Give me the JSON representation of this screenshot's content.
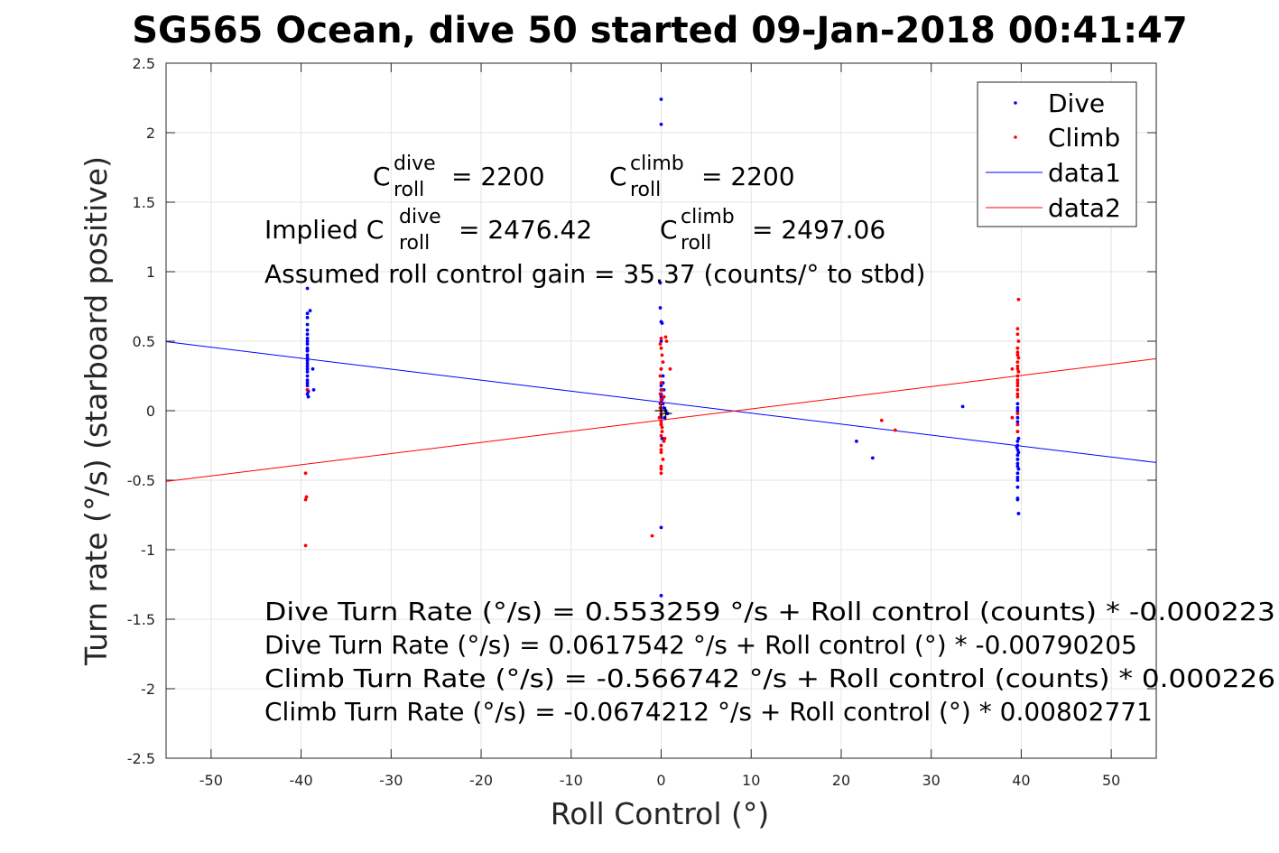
{
  "chart_data": {
    "type": "scatter",
    "title": "SG565 Ocean, dive 50 started 09-Jan-2018 00:41:47",
    "xlabel": "Roll Control (°)",
    "ylabel": "Turn rate (°/s) (starboard positive)",
    "xlim": [
      -55,
      55
    ],
    "ylim": [
      -2.5,
      2.5
    ],
    "xticks": [
      -50,
      -40,
      -30,
      -20,
      -10,
      0,
      10,
      20,
      30,
      40,
      50
    ],
    "yticks": [
      -2.5,
      -2,
      -1.5,
      -1,
      -0.5,
      0,
      0.5,
      1,
      1.5,
      2,
      2.5
    ],
    "grid": true,
    "legend_position": "top-right",
    "legend": [
      "Dive",
      "Climb",
      "data1",
      "data2"
    ],
    "colors": {
      "dive": "#0000ff",
      "climb": "#ff0000",
      "marker": "#000000"
    },
    "series": [
      {
        "name": "Dive",
        "kind": "points",
        "x": [
          -39.3,
          -39.3,
          -39.3,
          -39.3,
          -39.3,
          -39.3,
          -39.3,
          -39.3,
          -39.3,
          -39.3,
          -39.3,
          -39.3,
          -39.3,
          -39.3,
          -39.3,
          -39.3,
          -39.3,
          -39.3,
          -39.3,
          -39.3,
          -39.3,
          -39.3,
          -39.3,
          -39.3,
          -39.2,
          -39.2,
          -39.0,
          -38.7,
          -38.6,
          -39.3,
          0.0,
          0.0,
          -0.1,
          -0.1,
          0.0,
          0.1,
          0.0,
          0.0,
          0.2,
          0.3,
          0.0,
          -0.1,
          0.1,
          0.0,
          0.2,
          0.0,
          0.0,
          0.1,
          0.3,
          0.5,
          0.7,
          0.0,
          0.0,
          0.2,
          0.4,
          0.0,
          0.1,
          0.0,
          0.3,
          0.0,
          21.7,
          23.5,
          33.5,
          39.6,
          39.6,
          39.6,
          39.6,
          39.7,
          39.6,
          39.6,
          39.6,
          39.7,
          39.6,
          39.6,
          39.6,
          39.6,
          39.7,
          39.6,
          39.6,
          39.6,
          39.6,
          39.6,
          39.6,
          39.7,
          39.6,
          39.6,
          39.6,
          39.5,
          39.6
        ],
        "y": [
          0.88,
          0.7,
          0.67,
          0.62,
          0.58,
          0.55,
          0.52,
          0.5,
          0.48,
          0.45,
          0.43,
          0.4,
          0.38,
          0.36,
          0.34,
          0.32,
          0.3,
          0.28,
          0.25,
          0.22,
          0.2,
          0.18,
          0.15,
          0.12,
          0.1,
          0.14,
          0.72,
          0.3,
          0.15,
          0.44,
          2.24,
          2.06,
          0.92,
          0.74,
          0.64,
          0.63,
          0.5,
          0.3,
          0.2,
          0.15,
          0.1,
          0.05,
          0.08,
          0.12,
          0.05,
          -0.05,
          -0.1,
          0.2,
          0.02,
          0.0,
          -0.02,
          -0.84,
          -1.33,
          0.25,
          -0.05,
          0.15,
          -0.2,
          0.18,
          0.1,
          0.06,
          -0.22,
          -0.34,
          0.03,
          0.0,
          -0.05,
          -0.1,
          -0.15,
          -0.2,
          -0.22,
          -0.25,
          -0.28,
          -0.3,
          -0.32,
          -0.35,
          -0.38,
          -0.4,
          -0.42,
          -0.45,
          -0.48,
          -0.5,
          -0.55,
          -0.63,
          -0.64,
          -0.74,
          0.05,
          0.02,
          -0.08,
          -0.26,
          -0.35
        ]
      },
      {
        "name": "Climb",
        "kind": "points",
        "x": [
          -39.5,
          -39.4,
          -39.5,
          -39.5,
          -39.3,
          -1.0,
          0.0,
          -0.1,
          0.0,
          0.1,
          0.2,
          0.5,
          0.6,
          0.0,
          -0.1,
          0.0,
          0.1,
          0.3,
          0.0,
          0.0,
          -0.2,
          0.0,
          0.1,
          0.4,
          0.0,
          0.0,
          0.2,
          0.0,
          1.0,
          0.0,
          -0.1,
          0.0,
          0.1,
          0.0,
          0.3,
          0.0,
          0.0,
          0.0,
          -0.1,
          0.0,
          24.5,
          26.0,
          39.7,
          39.6,
          39.6,
          39.7,
          39.6,
          39.6,
          39.6,
          39.7,
          39.6,
          39.6,
          39.6,
          39.7,
          39.6,
          39.6,
          39.6,
          39.6,
          39.6,
          39.6,
          39.6,
          39.0,
          39.0,
          39.6,
          39.6,
          39.6
        ],
        "y": [
          -0.45,
          -0.62,
          -0.64,
          -0.97,
          0.15,
          -0.9,
          0.52,
          0.48,
          0.45,
          0.4,
          0.35,
          0.53,
          0.5,
          0.3,
          0.25,
          0.2,
          0.15,
          0.1,
          0.05,
          0.0,
          -0.05,
          -0.1,
          -0.15,
          -0.2,
          -0.25,
          -0.3,
          -0.35,
          -0.4,
          0.3,
          0.08,
          0.02,
          -0.08,
          -0.12,
          -0.18,
          -0.22,
          -0.28,
          -0.45,
          -0.42,
          0.12,
          -0.03,
          -0.07,
          -0.14,
          0.8,
          0.59,
          0.55,
          0.5,
          0.45,
          0.42,
          0.4,
          0.38,
          0.35,
          0.32,
          0.3,
          0.28,
          0.25,
          0.22,
          0.2,
          0.18,
          0.15,
          0.12,
          0.1,
          0.3,
          -0.05,
          -0.02,
          -0.1,
          -0.15
        ]
      },
      {
        "name": "data1",
        "kind": "line",
        "x": [
          -55,
          55
        ],
        "y": [
          0.4964,
          -0.3728
        ]
      },
      {
        "name": "data2",
        "kind": "line",
        "x": [
          -55,
          55
        ],
        "y": [
          -0.5089,
          0.3741
        ]
      },
      {
        "kind": "plus",
        "x": [
          0,
          0.5
        ],
        "y": [
          0,
          -0.02
        ]
      }
    ],
    "annotations": {
      "c_dive": {
        "sym": "C",
        "sup": "dive",
        "sub": "roll",
        "rest": "= 2200"
      },
      "c_climb": {
        "sym": "C",
        "sup": "climb",
        "sub": "roll",
        "rest": "= 2200"
      },
      "implied_dive": {
        "lead": "Implied C",
        "sup": "dive",
        "sub": "roll",
        "rest": "= 2476.42"
      },
      "implied_climb": {
        "sym": "C",
        "sup": "climb",
        "sub": "roll",
        "rest": "= 2497.06"
      },
      "gain": "Assumed roll control gain = 35.37 (counts/° to stbd)",
      "eq1": "Dive Turn Rate (°/s) = 0.553259 °/s + Roll control (counts) * -0.000223",
      "eq2": "Dive Turn Rate (°/s) = 0.0617542 °/s + Roll control (°) * -0.00790205",
      "eq3": "Climb Turn Rate (°/s) = -0.566742 °/s + Roll control (counts) * 0.000226",
      "eq4": "Climb Turn Rate (°/s) = -0.0674212 °/s + Roll control (°) * 0.00802771"
    }
  }
}
